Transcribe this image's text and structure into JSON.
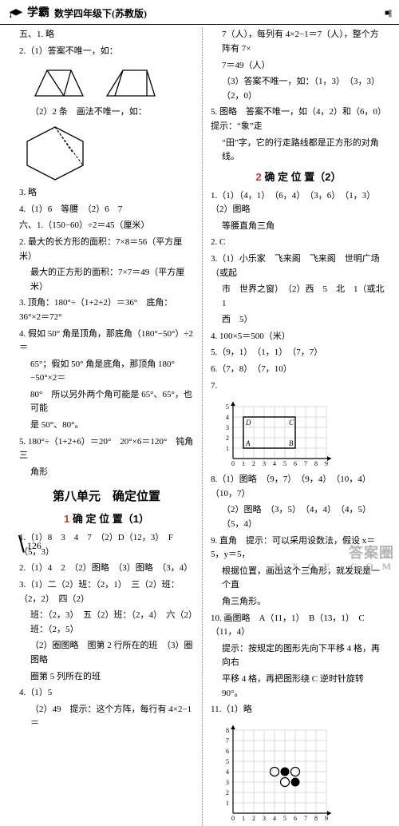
{
  "header": {
    "brand": "学霸",
    "title": "数学四年级下(苏教版)",
    "stripe": "■|||"
  },
  "left": {
    "l1": "五、1. 略",
    "l2": "2.（1）答案不唯一，如：",
    "l3": "（2）2 条　画法不唯一，如：",
    "l4": "3. 略",
    "l5": "4.（1）6　等腰　（2）6　7",
    "l6": "六、1.（150−60）÷2＝45（厘米）",
    "l7": "2. 最大的长方形的面积：7×8＝56（平方厘米）",
    "l7b": "最大的正方形的面积：7×7＝49（平方厘米）",
    "l8": "3. 顶角：180°÷（1+2+2）＝36°　底角：36°×2＝72°",
    "l9": "4. 假如 50° 角是顶角，那底角（180°−50°）÷2＝",
    "l9b": "65°；假如 50° 角是底角，那顶角 180°−50°×2＝",
    "l9c": "80°　所以另外两个角可能是 65°、65°，也可能",
    "l9d": "是 50°、80°。",
    "l10": "5. 180°÷（1+2+6）＝20°　20°×6＝120°　钝角三",
    "l10b": "角形",
    "unit": "第八单元　确定位置",
    "sub1_num": "1",
    "sub1_title": "确 定 位 置（1）",
    "s1": "1.（1）8　3　4　7　（2）D（12，3）　F（5，3）",
    "s2": "2.（1）4　2　（2）图略　（3）图略　（3，4）",
    "s3": "3.（1）二（2）班：（2，1）　三（2）班：（2，2）　四（2）",
    "s3b": "班：（2，3）　五（2）班：（2，4）　六（2）班：（2，5）",
    "s3c": "（2）圈图略　图第 2 行所在的班　（3）圈图略",
    "s3d": "圈第 5 列所在的班",
    "s4": "4.（1）5",
    "s4b": "（2）49　提示：这个方阵，每行有 4×2−1＝"
  },
  "right": {
    "r1": "7（人），每列有 4×2−1＝7（人），整个方阵有 7×",
    "r1b": "7＝49（人）",
    "r2": "（3）答案不唯一，如：（1，3）　（3，3）　（2，0）",
    "r3": "5. 图略　答案不唯一，如（4，2）和（6，0）　提示：“象”走",
    "r3b": "“田”字，它的行走路线都是正方形的对角线。",
    "sub2_num": "2",
    "sub2_title": "确 定 位 置（2）",
    "t1": "1.（1）（4，1）　（6，4）　（3，6）　（1，3）　（2）图略",
    "t1b": "等腰直角三角",
    "t2": "2. C",
    "t3": "3.（1）小乐家　飞来阁　飞来阁　世明广场（或起",
    "t3b": "市　世界之窗）　（2）西　5　北　1（或北　1",
    "t3c": "西　5）",
    "t4": "4. 100×5＝500（米）",
    "t5": "5.（9，1）　（1，1）　（7，7）",
    "t6": "6.（7，8）　（7，10）",
    "t7": "7.",
    "t8": "8.（1）图略　（9，7）　（9，4）　（10，4）　（10，7）",
    "t8b": "（2）图略　（3，5）　（4，4）　（4，5）　（5，4）",
    "t9": "9. 直角　提示：可以采用设数法，假设 x＝5，y＝5，",
    "t9b": "根据位置，画出这个三角形，就发现是一个直",
    "t9c": "角三角形。",
    "t10": "10. 画图略　A（11，1）　B（13，1）　C（11，4）",
    "t10b": "提示：按规定的图形先向下平移 4 格，再向右",
    "t10c": "平移 4 格，再把图形绕 C 逆时针旋转 90°。",
    "t11": "11.（1）略"
  },
  "grid7": {
    "labels": {
      "A": "A",
      "B": "B",
      "C": "C",
      "D": "D"
    },
    "points": {
      "A": [
        1,
        1
      ],
      "B": [
        6,
        1
      ],
      "C": [
        6,
        4
      ],
      "D": [
        1,
        4
      ]
    },
    "xticks": [
      "0",
      "1",
      "2",
      "3",
      "4",
      "5",
      "6",
      "7",
      "8",
      "9"
    ],
    "yticks": [
      "1",
      "2",
      "3",
      "4",
      "5"
    ],
    "lineColor": "#000",
    "bg": "#fff"
  },
  "grid11": {
    "xticks": [
      "0",
      "1",
      "2",
      "3",
      "4",
      "5",
      "6",
      "7",
      "8",
      "9"
    ],
    "yticks": [
      "1",
      "2",
      "3",
      "4",
      "5",
      "6",
      "7",
      "8"
    ],
    "black": [
      [
        5,
        4
      ],
      [
        6,
        3
      ]
    ],
    "white": [
      [
        4,
        4
      ],
      [
        6,
        4
      ],
      [
        5,
        3
      ]
    ],
    "lineColor": "#000"
  },
  "pageNum": "126",
  "watermark": {
    "big": "答案圈",
    "small": "M X Q E . C O M"
  }
}
